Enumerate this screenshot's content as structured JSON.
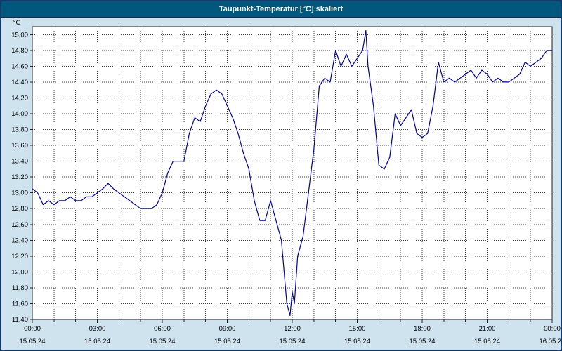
{
  "window": {
    "title": "Taupunkt-Temperatur [°C] skaliert"
  },
  "colors": {
    "window_border": "#123a6b",
    "window_background": "#cfe3ef",
    "titlebar_background": "#00587e",
    "titlebar_text": "#ffffff",
    "plot_background": "#ffffff",
    "plot_frame": "#222222",
    "grid": "#3c3c3c",
    "line": "#0000a0",
    "tick_text": "#000000"
  },
  "chart_data": {
    "type": "line",
    "title": "Taupunkt-Temperatur [°C] skaliert",
    "ylabel": "°C",
    "ylim": [
      11.4,
      15.1
    ],
    "ytick_step": 0.2,
    "ytick_values": [
      15.0,
      14.8,
      14.6,
      14.4,
      14.2,
      14.0,
      13.8,
      13.6,
      13.4,
      13.2,
      13.0,
      12.8,
      12.6,
      12.4,
      12.2,
      12.0,
      11.8,
      11.6,
      11.4
    ],
    "ytick_labels": [
      "15,00",
      "14,80",
      "14,60",
      "14,40",
      "14,20",
      "14,00",
      "13,80",
      "13,60",
      "13,40",
      "13,20",
      "13,00",
      "12,80",
      "12,60",
      "12,40",
      "12,20",
      "12,00",
      "11,80",
      "11,60",
      "11,40"
    ],
    "xlim": [
      0,
      24
    ],
    "x_minor_step_hours": 1,
    "x_major_ticks": [
      0,
      3,
      6,
      9,
      12,
      15,
      18,
      21,
      24
    ],
    "x_tick_labels": [
      "00:00",
      "03:00",
      "06:00",
      "09:00",
      "12:00",
      "15:00",
      "18:00",
      "21:00",
      "00:00"
    ],
    "x_date_labels": [
      "15.05.24",
      "15.05.24",
      "15.05.24",
      "15.05.24",
      "15.05.24",
      "15.05.24",
      "15.05.24",
      "15.05.24",
      "16.05.24"
    ],
    "grid": "dotted, vertical every hour, horizontal every 0.20 °C",
    "legend": "none",
    "series": [
      {
        "name": "Taupunkt-Temperatur",
        "x": [
          0,
          0.25,
          0.5,
          0.75,
          1,
          1.25,
          1.5,
          1.75,
          2,
          2.25,
          2.5,
          2.75,
          3,
          3.25,
          3.5,
          3.75,
          4,
          4.25,
          4.5,
          4.75,
          5,
          5.25,
          5.5,
          5.75,
          6,
          6.25,
          6.5,
          6.75,
          7,
          7.25,
          7.5,
          7.75,
          8,
          8.25,
          8.5,
          8.75,
          9,
          9.25,
          9.5,
          9.75,
          10,
          10.25,
          10.5,
          10.75,
          11,
          11.25,
          11.5,
          11.75,
          11.9,
          12,
          12.1,
          12.25,
          12.5,
          12.75,
          13,
          13.25,
          13.5,
          13.75,
          14,
          14.25,
          14.5,
          14.75,
          15,
          15.25,
          15.4,
          15.5,
          15.75,
          16,
          16.25,
          16.5,
          16.75,
          17,
          17.25,
          17.5,
          17.75,
          18,
          18.25,
          18.5,
          18.75,
          19,
          19.25,
          19.5,
          19.75,
          20,
          20.25,
          20.5,
          20.75,
          21,
          21.25,
          21.5,
          21.75,
          22,
          22.25,
          22.5,
          22.75,
          23,
          23.25,
          23.5,
          23.75,
          24
        ],
        "y": [
          13.05,
          13.0,
          12.85,
          12.9,
          12.85,
          12.9,
          12.9,
          12.95,
          12.9,
          12.9,
          12.95,
          12.95,
          13.0,
          13.05,
          13.12,
          13.05,
          13.0,
          12.95,
          12.9,
          12.85,
          12.8,
          12.8,
          12.8,
          12.85,
          13.0,
          13.25,
          13.4,
          13.4,
          13.4,
          13.75,
          13.95,
          13.9,
          14.1,
          14.25,
          14.3,
          14.25,
          14.1,
          13.95,
          13.75,
          13.5,
          13.3,
          12.9,
          12.65,
          12.65,
          12.9,
          12.65,
          12.4,
          11.6,
          11.45,
          11.75,
          11.6,
          12.2,
          12.45,
          13.0,
          13.55,
          14.35,
          14.45,
          14.4,
          14.8,
          14.6,
          14.75,
          14.6,
          14.7,
          14.8,
          15.05,
          14.6,
          14.1,
          13.35,
          13.3,
          13.45,
          14.0,
          13.85,
          13.95,
          14.05,
          13.75,
          13.7,
          13.75,
          14.1,
          14.65,
          14.4,
          14.45,
          14.4,
          14.45,
          14.5,
          14.55,
          14.45,
          14.55,
          14.5,
          14.4,
          14.45,
          14.4,
          14.4,
          14.45,
          14.5,
          14.65,
          14.6,
          14.65,
          14.7,
          14.8,
          14.8
        ]
      }
    ]
  }
}
